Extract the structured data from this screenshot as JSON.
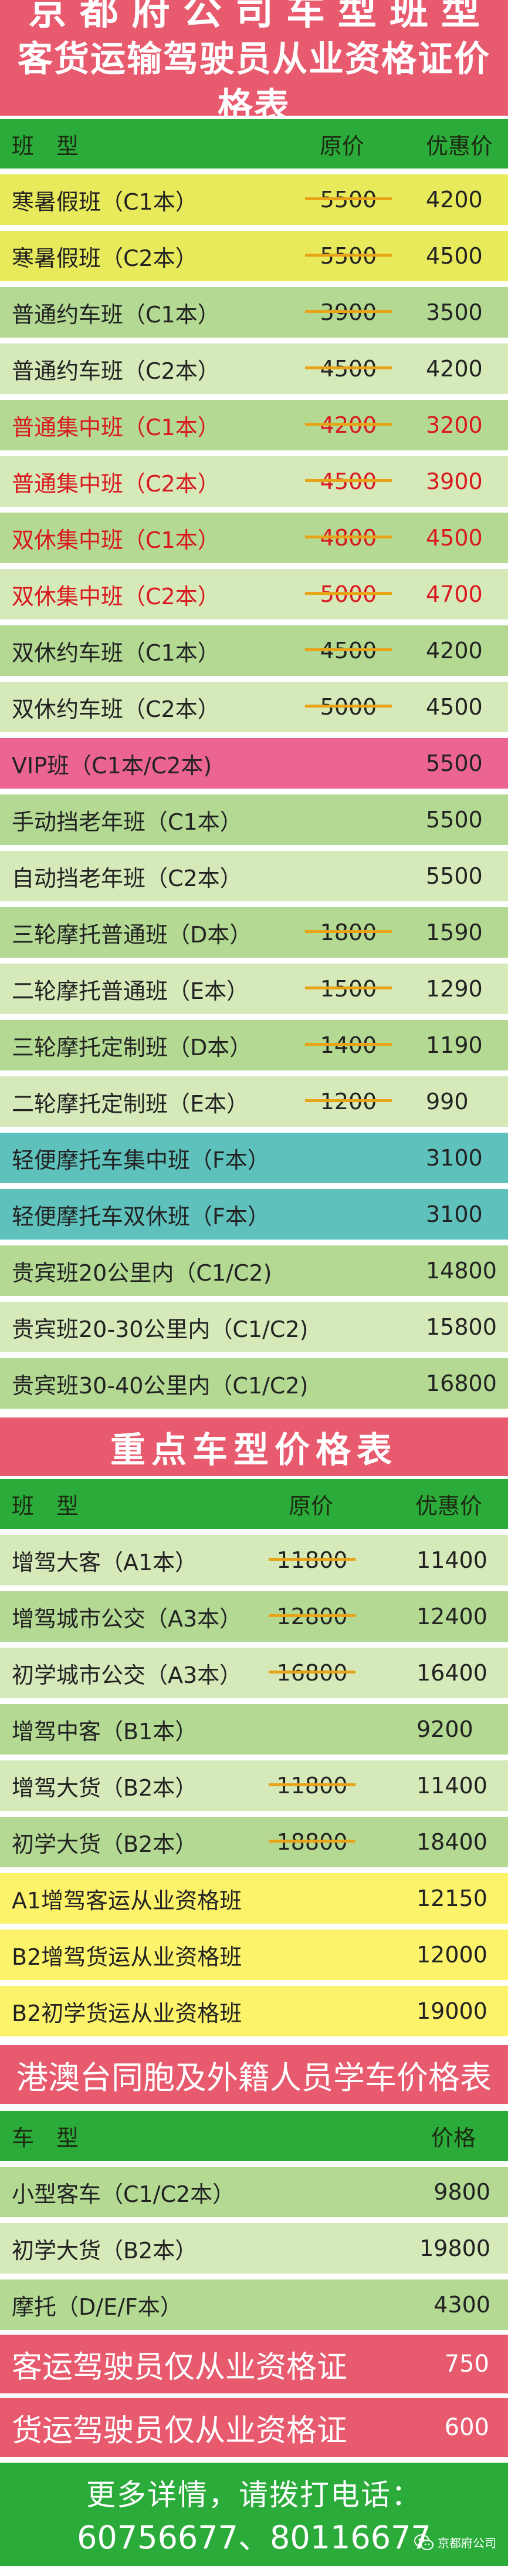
{
  "colors": {
    "pink": "#e85a6e",
    "header_green": "#2aab3a",
    "row_dark": "#b3d993",
    "row_light": "#d6e9b8",
    "yellow1": "#e8ea5c",
    "yellow2": "#fdf36a",
    "vip": "#ec6590",
    "teal": "#5fc1bc",
    "red_text": "#d9181f",
    "strike": "#e8a317"
  },
  "title": {
    "line1": "京都府公司车型班型",
    "line2": "客货运输驾驶员从业资格证价格表"
  },
  "section1": {
    "header": {
      "type": "班型",
      "original": "原价",
      "discount": "优惠价"
    },
    "rows": [
      {
        "name": "寒暑假班（C1本）",
        "original": "5500",
        "price": "4200",
        "bg": "yellow1"
      },
      {
        "name": "寒暑假班（C2本）",
        "original": "5500",
        "price": "4500",
        "bg": "yellow1"
      },
      {
        "name": "普通约车班（C1本）",
        "original": "3900",
        "price": "3500",
        "bg": "row_dark"
      },
      {
        "name": "普通约车班（C2本）",
        "original": "4500",
        "price": "4200",
        "bg": "row_light"
      },
      {
        "name": "普通集中班（C1本）",
        "original": "4200",
        "price": "3200",
        "bg": "row_dark",
        "red": true
      },
      {
        "name": "普通集中班（C2本）",
        "original": "4500",
        "price": "3900",
        "bg": "row_light",
        "red": true
      },
      {
        "name": "双休集中班（C1本）",
        "original": "4800",
        "price": "4500",
        "bg": "row_dark",
        "red": true
      },
      {
        "name": "双休集中班（C2本）",
        "original": "5000",
        "price": "4700",
        "bg": "row_light",
        "red": true
      },
      {
        "name": "双休约车班（C1本）",
        "original": "4500",
        "price": "4200",
        "bg": "row_dark"
      },
      {
        "name": "双休约车班（C2本）",
        "original": "5000",
        "price": "4500",
        "bg": "row_light"
      },
      {
        "name": "VIP班（C1本/C2本)",
        "original": "",
        "price": "5500",
        "bg": "vip"
      },
      {
        "name": "手动挡老年班（C1本）",
        "original": "",
        "price": "5500",
        "bg": "row_dark"
      },
      {
        "name": "自动挡老年班（C2本）",
        "original": "",
        "price": "5500",
        "bg": "row_light"
      },
      {
        "name": "三轮摩托普通班（D本）",
        "original": "1800",
        "price": "1590",
        "bg": "row_dark"
      },
      {
        "name": "二轮摩托普通班（E本）",
        "original": "1500",
        "price": "1290",
        "bg": "row_light"
      },
      {
        "name": "三轮摩托定制班（D本）",
        "original": "1400",
        "price": "1190",
        "bg": "row_dark"
      },
      {
        "name": "二轮摩托定制班（E本）",
        "original": "1200",
        "price": "990",
        "bg": "row_light"
      },
      {
        "name": "轻便摩托车集中班（F本）",
        "original": "",
        "price": "3100",
        "bg": "teal"
      },
      {
        "name": "轻便摩托车双休班（F本）",
        "original": "",
        "price": "3100",
        "bg": "teal"
      },
      {
        "name": "贵宾班20公里内（C1/C2)",
        "original": "",
        "price": "14800",
        "bg": "row_dark"
      },
      {
        "name": "贵宾班20-30公里内（C1/C2)",
        "original": "",
        "price": "15800",
        "bg": "row_light"
      },
      {
        "name": "贵宾班30-40公里内（C1/C2)",
        "original": "",
        "price": "16800",
        "bg": "row_dark"
      }
    ]
  },
  "section2": {
    "title": "重点车型价格表",
    "header": {
      "type": "班型",
      "original": "原价",
      "discount": "优惠价"
    },
    "rows": [
      {
        "name": "增驾大客（A1本）",
        "original": "11800",
        "price": "11400",
        "bg": "row_light"
      },
      {
        "name": "增驾城市公交（A3本）",
        "original": "12800",
        "price": "12400",
        "bg": "row_dark"
      },
      {
        "name": "初学城市公交（A3本）",
        "original": "16800",
        "price": "16400",
        "bg": "row_light"
      },
      {
        "name": "增驾中客（B1本）",
        "original": "",
        "price": "9200",
        "bg": "row_dark"
      },
      {
        "name": "增驾大货（B2本）",
        "original": "11800",
        "price": "11400",
        "bg": "row_light"
      },
      {
        "name": "初学大货（B2本）",
        "original": "18800",
        "price": "18400",
        "bg": "row_dark"
      },
      {
        "name": "A1增驾客运从业资格班",
        "original": "",
        "price": "12150",
        "bg": "yellow2"
      },
      {
        "name": "B2增驾货运从业资格班",
        "original": "",
        "price": "12000",
        "bg": "yellow2"
      },
      {
        "name": "B2初学货运从业资格班",
        "original": "",
        "price": "19000",
        "bg": "yellow2"
      }
    ]
  },
  "section3": {
    "title": "港澳台同胞及外籍人员学车价格表",
    "header": {
      "type": "车型",
      "price": "价格"
    },
    "rows": [
      {
        "name": "小型客车（C1/C2本）",
        "price": "9800",
        "bg": "row_dark"
      },
      {
        "name": "初学大货（B2本）",
        "price": "19800",
        "bg": "row_light"
      },
      {
        "name": "摩托（D/E/F本）",
        "price": "4300",
        "bg": "row_dark"
      }
    ]
  },
  "certificates": [
    {
      "name": "客运驾驶员仅从业资格证",
      "price": "750"
    },
    {
      "name": "货运驾驶员仅从业资格证",
      "price": "600"
    }
  ],
  "footer": {
    "line1": "更多详情，请拨打电话：",
    "line2": "60756677、80116677",
    "watermark": "京都府公司",
    "watermark_icon": "wechat-icon"
  }
}
